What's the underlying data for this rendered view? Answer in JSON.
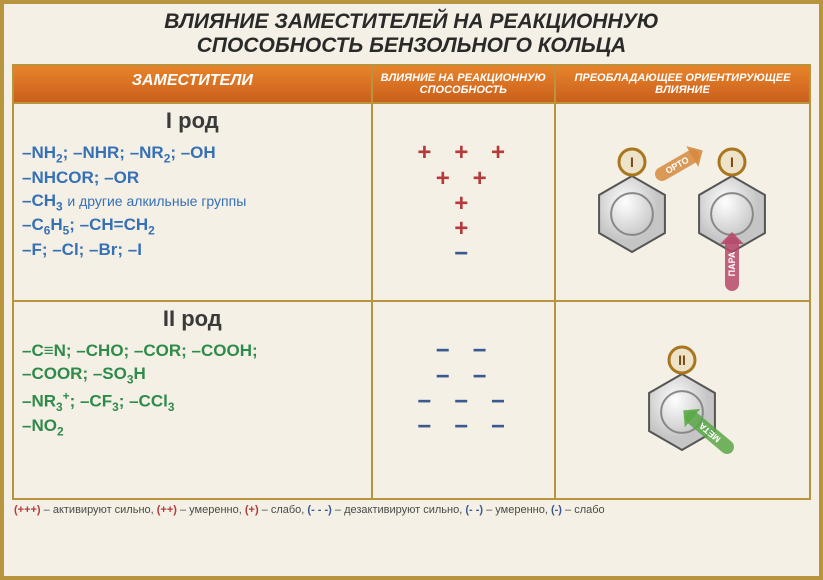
{
  "title_line1": "ВЛИЯНИЕ ЗАМЕСТИТЕЛЕЙ НА РЕАКЦИОННУЮ",
  "title_line2": "СПОСОБНОСТЬ БЕНЗОЛЬНОГО КОЛЬЦА",
  "title_fontsize": 21,
  "headers": {
    "col1": "ЗАМЕСТИТЕЛИ",
    "col2": "ВЛИЯНИЕ НА РЕАКЦИОННУЮ СПОСОБНОСТЬ",
    "col3": "ПРЕОБЛАДАЮЩЕЕ ОРИЕНТИРУЮЩЕЕ ВЛИЯНИЕ"
  },
  "col_widths": {
    "c1": "45%",
    "c2": "23%",
    "c3": "32%"
  },
  "rod1": {
    "header": "I род",
    "color": "#3670b5",
    "lines": [
      {
        "html": "–NH<sub>2</sub>; –NHR; –NR<sub>2</sub>; –OH",
        "react": "+++"
      },
      {
        "html": "–NHCOR; –OR",
        "react": "++"
      },
      {
        "html": "–CH<sub>3</sub> <span class='note'>и другие алкильные группы</span>",
        "react": "+"
      },
      {
        "html": "–C<sub>6</sub>H<sub>5</sub>; –CH=CH<sub>2</sub>",
        "react": "+"
      },
      {
        "html": "–F; –Cl; –Br; –I",
        "react": "−"
      }
    ],
    "diagram": {
      "badge": "I",
      "arrows": [
        {
          "label": "ОРТО",
          "color": "#d68a3e"
        },
        {
          "label": "ПАРА",
          "color": "#b84a6a"
        }
      ]
    }
  },
  "rod2": {
    "header": "II род",
    "color": "#2e8b4a",
    "lines": [
      {
        "html": "–C≡N; –CHO; –COR; –COOH;",
        "react": "−−"
      },
      {
        "html": "–COOR; –SO<sub>3</sub>H",
        "react": "−−"
      },
      {
        "html": "–NR<sub>3</sub><sup>+</sup>; –CF<sub>3</sub>; –CCl<sub>3</sub>",
        "react": "−−−"
      },
      {
        "html": "–NO<sub>2</sub>",
        "react": "−−−"
      }
    ],
    "diagram": {
      "badge": "II",
      "arrows": [
        {
          "label": "МЕТА",
          "color": "#5aa848"
        }
      ]
    }
  },
  "legend": {
    "items": [
      {
        "sym": "(+++)",
        "txt": "активируют сильно",
        "cls": "lp"
      },
      {
        "sym": "(++)",
        "txt": "умеренно",
        "cls": "lp"
      },
      {
        "sym": "(+)",
        "txt": "слабо",
        "cls": "lp"
      },
      {
        "sym": "(- - -)",
        "txt": "дезактивируют сильно",
        "cls": "lm"
      },
      {
        "sym": "(- -)",
        "txt": "умеренно",
        "cls": "lm"
      },
      {
        "sym": "(-)",
        "txt": "слабо",
        "cls": "lm"
      }
    ]
  },
  "colors": {
    "border": "#b8943e",
    "header_bg": "#e8832a",
    "plus": "#b53a3a",
    "minus": "#3a5a8f",
    "bg": "#f5f0e5"
  }
}
